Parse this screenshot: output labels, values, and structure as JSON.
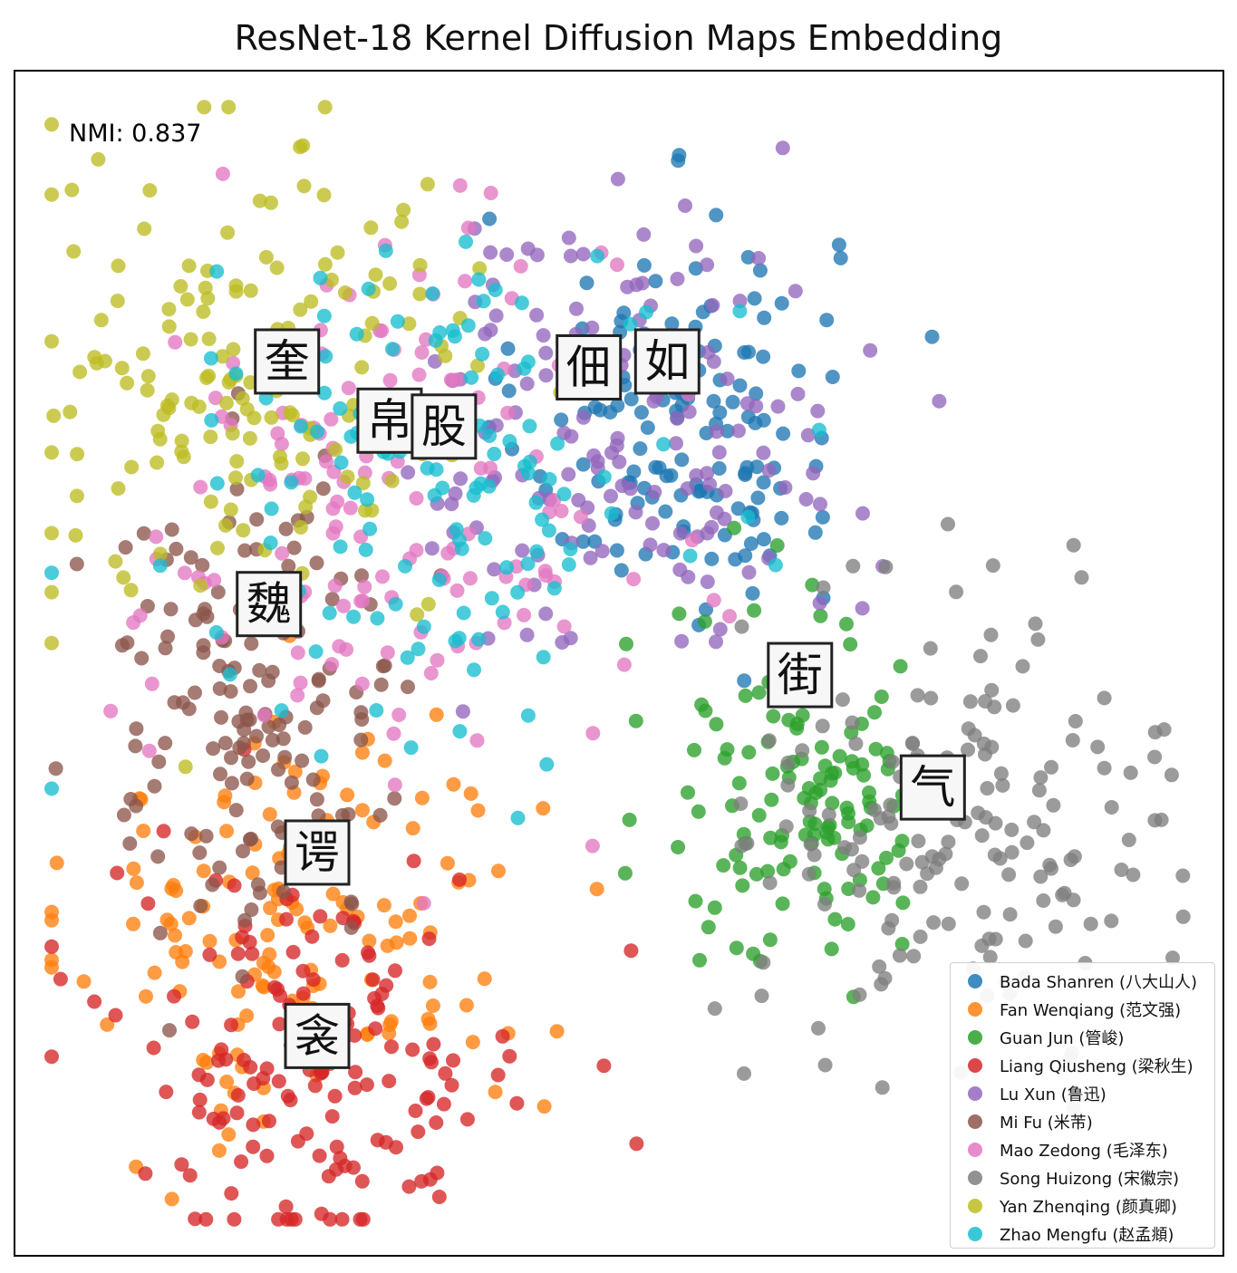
{
  "title": "ResNet-18 Kernel Diffusion Maps Embedding",
  "annotation": "NMI: 0.837",
  "chart_data": {
    "type": "scatter",
    "title": "ResNet-18 Kernel Diffusion Maps Embedding",
    "xlabel": "",
    "ylabel": "",
    "xlim": [
      0,
      100
    ],
    "ylim": [
      0,
      100
    ],
    "grid": false,
    "legend_position": "bottom-right",
    "series": [
      {
        "name": "Bada Shanren (八大山人)",
        "color": "#1f77b4",
        "center": [
          55.0,
          71.0
        ],
        "spread": [
          6.5,
          8.5
        ],
        "count": 150
      },
      {
        "name": "Fan Wenqiang (范文强)",
        "color": "#ff7f0e",
        "center": [
          24.0,
          28.0
        ],
        "spread": [
          9.5,
          9.0
        ],
        "count": 150
      },
      {
        "name": "Guan Jun (管峻)",
        "color": "#2ca02c",
        "center": [
          66.0,
          39.0
        ],
        "spread": [
          6.0,
          8.0
        ],
        "count": 140
      },
      {
        "name": "Liang Qiusheng (梁秋生)",
        "color": "#d62728",
        "center": [
          25.0,
          17.0
        ],
        "spread": [
          9.0,
          8.5
        ],
        "count": 160
      },
      {
        "name": "Lu Xun (鲁迅)",
        "color": "#9467bd",
        "center": [
          51.0,
          69.5
        ],
        "spread": [
          9.0,
          9.5
        ],
        "count": 150
      },
      {
        "name": "Mi Fu (米芾)",
        "color": "#8c564b",
        "center": [
          19.5,
          47.0
        ],
        "spread": [
          7.0,
          10.0
        ],
        "count": 150
      },
      {
        "name": "Mao Zedong (毛泽东)",
        "color": "#e377c2",
        "center": [
          30.0,
          62.0
        ],
        "spread": [
          10.0,
          12.0
        ],
        "count": 150
      },
      {
        "name": "Song Huizong (宋徽宗)",
        "color": "#7f7f7f",
        "center": [
          79.0,
          37.0
        ],
        "spread": [
          8.5,
          9.5
        ],
        "count": 170
      },
      {
        "name": "Yan Zhenqing (颜真卿)",
        "color": "#bcbd22",
        "center": [
          19.0,
          73.0
        ],
        "spread": [
          10.0,
          10.5
        ],
        "count": 160
      },
      {
        "name": "Zhao Mengfu (赵孟頫)",
        "color": "#17becf",
        "center": [
          36.0,
          66.0
        ],
        "spread": [
          10.0,
          9.5
        ],
        "count": 140
      }
    ],
    "glyph_images": [
      {
        "char": "奎",
        "x": 22.5,
        "y": 75.5
      },
      {
        "char": "帛",
        "x": 31.0,
        "y": 70.5
      },
      {
        "char": "股",
        "x": 35.5,
        "y": 70.0
      },
      {
        "char": "佃",
        "x": 47.5,
        "y": 75.0
      },
      {
        "char": "如",
        "x": 54.0,
        "y": 75.5
      },
      {
        "char": "魏",
        "x": 21.0,
        "y": 55.0
      },
      {
        "char": "街",
        "x": 65.0,
        "y": 49.0
      },
      {
        "char": "气",
        "x": 76.0,
        "y": 39.5
      },
      {
        "char": "谔",
        "x": 25.0,
        "y": 34.0
      },
      {
        "char": "衾",
        "x": 25.0,
        "y": 18.5
      }
    ]
  }
}
